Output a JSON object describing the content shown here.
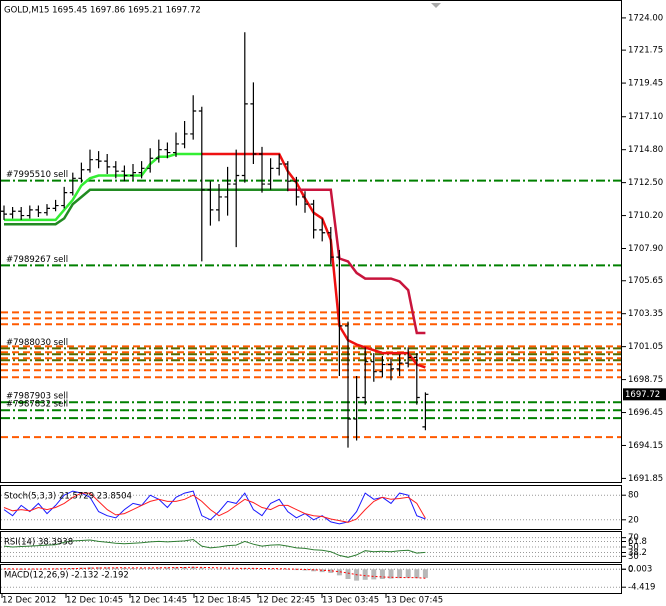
{
  "chart_data": [
    {
      "type": "ohlc",
      "title": "GOLD,M15  1695.45 1697.86 1695.21 1697.72",
      "bar_color": "#000000",
      "ohlc": [
        [
          1710.5,
          1710.9,
          1709.9,
          1710.3
        ],
        [
          1710.3,
          1710.8,
          1710.0,
          1710.5
        ],
        [
          1710.5,
          1710.8,
          1709.9,
          1710.2
        ],
        [
          1710.2,
          1710.9,
          1710.0,
          1710.6
        ],
        [
          1710.6,
          1710.9,
          1710.1,
          1710.4
        ],
        [
          1710.4,
          1711.0,
          1710.2,
          1710.7
        ],
        [
          1710.7,
          1711.3,
          1710.5,
          1710.9
        ],
        [
          1710.9,
          1712.2,
          1710.7,
          1711.8
        ],
        [
          1711.8,
          1713.2,
          1711.6,
          1712.8
        ],
        [
          1712.8,
          1713.9,
          1712.5,
          1713.4
        ],
        [
          1713.4,
          1714.8,
          1713.2,
          1714.1
        ],
        [
          1714.1,
          1714.7,
          1713.5,
          1714.0
        ],
        [
          1714.0,
          1714.5,
          1713.1,
          1713.6
        ],
        [
          1713.6,
          1714.0,
          1712.8,
          1713.3
        ],
        [
          1713.3,
          1713.7,
          1712.6,
          1713.0
        ],
        [
          1713.0,
          1713.8,
          1712.7,
          1713.2
        ],
        [
          1713.2,
          1714.0,
          1712.8,
          1713.5
        ],
        [
          1713.5,
          1714.9,
          1713.2,
          1714.2
        ],
        [
          1714.2,
          1715.5,
          1713.9,
          1714.8
        ],
        [
          1714.8,
          1715.3,
          1714.2,
          1714.6
        ],
        [
          1714.6,
          1716.0,
          1714.3,
          1715.2
        ],
        [
          1715.2,
          1716.8,
          1714.9,
          1715.9
        ],
        [
          1715.9,
          1718.6,
          1715.5,
          1717.5
        ],
        [
          1717.5,
          1717.8,
          1707.0,
          1712.0
        ],
        [
          1712.0,
          1712.6,
          1709.5,
          1710.6
        ],
        [
          1710.6,
          1712.4,
          1709.8,
          1711.5
        ],
        [
          1711.5,
          1713.6,
          1710.2,
          1712.4
        ],
        [
          1712.4,
          1714.8,
          1708.0,
          1713.0
        ],
        [
          1713.0,
          1723.0,
          1712.5,
          1718.0
        ],
        [
          1718.0,
          1719.5,
          1713.8,
          1714.5
        ],
        [
          1714.5,
          1715.0,
          1711.8,
          1712.4
        ],
        [
          1712.4,
          1714.2,
          1712.0,
          1713.5
        ],
        [
          1713.5,
          1714.5,
          1713.0,
          1713.8
        ],
        [
          1713.8,
          1714.0,
          1711.9,
          1712.6
        ],
        [
          1712.6,
          1712.9,
          1710.9,
          1711.5
        ],
        [
          1711.5,
          1711.9,
          1710.4,
          1711.0
        ],
        [
          1711.0,
          1711.3,
          1708.6,
          1709.2
        ],
        [
          1709.2,
          1710.0,
          1708.4,
          1709.0
        ],
        [
          1709.0,
          1709.4,
          1706.8,
          1707.3
        ],
        [
          1707.3,
          1707.8,
          1699.0,
          1702.5
        ],
        [
          1702.5,
          1702.8,
          1694.0,
          1696.0
        ],
        [
          1696.0,
          1699.0,
          1694.5,
          1697.5
        ],
        [
          1697.5,
          1701.0,
          1697.0,
          1700.0
        ],
        [
          1700.0,
          1700.6,
          1698.6,
          1699.3
        ],
        [
          1699.3,
          1700.4,
          1698.9,
          1699.8
        ],
        [
          1699.8,
          1700.2,
          1698.7,
          1699.5
        ],
        [
          1699.5,
          1700.5,
          1699.0,
          1699.9
        ],
        [
          1699.9,
          1701.0,
          1699.6,
          1700.3
        ],
        [
          1700.3,
          1700.6,
          1697.0,
          1697.5
        ],
        [
          1695.45,
          1697.86,
          1695.21,
          1697.72
        ]
      ],
      "series": [
        {
          "color": "#33ee33",
          "values": [
            1709.9,
            1709.9,
            1709.9,
            1709.9,
            1709.9,
            1709.9,
            1709.9,
            1710.6,
            1711.3,
            1712.3,
            1712.8,
            1713.0,
            1713.0,
            1713.0,
            1713.0,
            1713.0,
            1713.0,
            1713.8,
            1714.3,
            1714.3,
            1714.5,
            1714.5,
            1714.5,
            1714.5,
            null,
            null,
            null,
            null,
            null,
            null,
            null,
            null,
            null,
            null,
            null,
            null,
            null,
            null,
            null,
            null,
            null,
            null,
            null,
            null,
            null,
            null,
            null,
            null,
            null,
            null
          ]
        },
        {
          "color": "#ee1111",
          "values": [
            null,
            null,
            null,
            null,
            null,
            null,
            null,
            null,
            null,
            null,
            null,
            null,
            null,
            null,
            null,
            null,
            null,
            null,
            null,
            null,
            null,
            null,
            null,
            1714.5,
            1714.5,
            1714.5,
            1714.5,
            1714.5,
            1714.5,
            1714.5,
            1714.5,
            1714.5,
            1714.5,
            1713.3,
            1712.5,
            1711.4,
            1710.4,
            1710.0,
            1708.5,
            1702.5,
            1701.5,
            1701.2,
            1701.0,
            1700.8,
            1700.6,
            1700.6,
            1700.6,
            1700.6,
            1699.8,
            1699.6
          ]
        },
        {
          "color": "#228b22",
          "values": [
            1709.6,
            1709.6,
            1709.6,
            1709.6,
            1709.6,
            1709.6,
            1709.6,
            1710.0,
            1711.0,
            1711.5,
            1712.0,
            1712.0,
            1712.0,
            1712.0,
            1712.0,
            1712.0,
            1712.0,
            1712.0,
            1712.0,
            1712.0,
            1712.0,
            1712.0,
            1712.0,
            1712.0,
            1712.0,
            1712.0,
            1712.0,
            1712.0,
            1712.0,
            1712.0,
            1712.0,
            1712.0,
            1712.0,
            1712.0,
            null,
            null,
            null,
            null,
            null,
            null,
            null,
            null,
            null,
            null,
            null,
            null,
            null,
            null,
            null,
            null
          ]
        },
        {
          "color": "#c8143c",
          "values": [
            null,
            null,
            null,
            null,
            null,
            null,
            null,
            null,
            null,
            null,
            null,
            null,
            null,
            null,
            null,
            null,
            null,
            null,
            null,
            null,
            null,
            null,
            null,
            null,
            null,
            null,
            null,
            null,
            null,
            null,
            null,
            null,
            null,
            1712.0,
            1712.0,
            1712.0,
            1712.0,
            1712.0,
            1712.0,
            1707.2,
            1707.0,
            1706.2,
            1705.8,
            1705.8,
            1705.8,
            1705.8,
            1705.6,
            1705.0,
            1702.0,
            1702.0
          ]
        }
      ],
      "levels": [
        {
          "value": 1703.44,
          "color": "#ff5a00",
          "style": "dash"
        },
        {
          "value": 1703.02,
          "color": "#ff5a00",
          "style": "dash"
        },
        {
          "value": 1702.61,
          "color": "#ff5a00",
          "style": "dash"
        },
        {
          "value": 1701.07,
          "color": "#ff5a00",
          "style": "dash"
        },
        {
          "value": 1700.66,
          "color": "#ff5a00",
          "style": "dash"
        },
        {
          "value": 1700.24,
          "color": "#ff5a00",
          "style": "dash"
        },
        {
          "value": 1699.82,
          "color": "#ff5a00",
          "style": "dash"
        },
        {
          "value": 1699.4,
          "color": "#ff5a00",
          "style": "dash"
        },
        {
          "value": 1698.91,
          "color": "#ff5a00",
          "style": "dash"
        },
        {
          "value": 1700.52,
          "color": "#556b00",
          "style": "dashdot"
        },
        {
          "value": 1700.1,
          "color": "#556b00",
          "style": "dashdot"
        },
        {
          "value": 1696.06,
          "color": "#008000",
          "style": "dashdot"
        },
        {
          "value": 1694.73,
          "color": "#ff5a00",
          "style": "dash"
        }
      ],
      "orders": [
        {
          "label": "#7995510 sell",
          "value": 1712.64,
          "color": "#008000"
        },
        {
          "label": "#7989267 sell",
          "value": 1706.72,
          "color": "#008000"
        },
        {
          "label": "#7988030 sell",
          "value": 1700.93,
          "color": "#556b00"
        },
        {
          "label": "#7987903 sell",
          "value": 1697.17,
          "color": "#008000"
        },
        {
          "label": "#7987832 sell",
          "value": 1696.61,
          "color": "#008000"
        }
      ],
      "current_price": 1697.72,
      "ylim": [
        1691.6,
        1725.18
      ],
      "yticks": [
        {
          "value": 1724,
          "label": "1724.00"
        },
        1721.75,
        1719.45,
        {
          "value": 1717.1,
          "label": "1717.10"
        },
        {
          "value": 1714.8,
          "label": "1714.80"
        },
        {
          "value": 1712.5,
          "label": "1712.50"
        },
        {
          "value": 1710.2,
          "label": "1710.20"
        },
        {
          "value": 1707.9,
          "label": "1707.90"
        },
        1705.65,
        1703.35,
        1701.05,
        1698.75,
        1696.45,
        1694.15,
        1691.85
      ],
      "x_labels": [
        "12 Dec 2012",
        "12 Dec 10:45",
        "12 Dec 14:45",
        "12 Dec 18:45",
        "12 Dec 22:45",
        "13 Dec 03:45",
        "13 Dec 07:45"
      ]
    },
    {
      "type": "line",
      "title": "Stoch(5,3,3) 21.5729 23.8504",
      "ylim": [
        0,
        100
      ],
      "yticks": [
        20,
        80
      ],
      "series": [
        {
          "color": "#1a1aff",
          "values": [
            45,
            30,
            55,
            40,
            60,
            35,
            55,
            80,
            90,
            85,
            75,
            40,
            30,
            25,
            45,
            60,
            55,
            80,
            70,
            50,
            75,
            85,
            90,
            30,
            20,
            40,
            65,
            60,
            85,
            45,
            30,
            60,
            70,
            40,
            25,
            35,
            20,
            30,
            15,
            10,
            15,
            40,
            85,
            70,
            75,
            60,
            85,
            80,
            30,
            22
          ]
        },
        {
          "color": "#ff2020",
          "values": [
            50,
            42,
            45,
            42,
            50,
            45,
            50,
            60,
            75,
            85,
            85,
            65,
            45,
            32,
            35,
            45,
            55,
            65,
            70,
            65,
            65,
            70,
            80,
            65,
            45,
            30,
            40,
            55,
            70,
            62,
            50,
            45,
            55,
            55,
            45,
            35,
            30,
            28,
            22,
            18,
            14,
            22,
            45,
            65,
            75,
            70,
            72,
            75,
            60,
            24
          ]
        }
      ]
    },
    {
      "type": "line",
      "title": "RSI(14) 38.3938",
      "ylim": [
        20,
        80
      ],
      "yticks": [
        70,
        61.8,
        50,
        38.2,
        30
      ],
      "series": [
        {
          "color": "#2e7d32",
          "values": [
            52,
            50,
            51,
            52,
            53,
            54,
            55,
            60,
            63,
            64,
            65,
            62,
            60,
            58,
            57,
            58,
            59,
            61,
            62,
            61,
            62,
            63,
            66,
            52,
            48,
            50,
            53,
            54,
            62,
            56,
            52,
            54,
            55,
            52,
            48,
            47,
            44,
            43,
            40,
            32,
            28,
            33,
            42,
            40,
            41,
            40,
            42,
            43,
            37,
            38.4
          ]
        }
      ]
    },
    {
      "type": "macd",
      "title": "MACD(12,26,9) -2.132 -2.192",
      "ylim": [
        -5.6,
        0.8
      ],
      "yticks": [
        0.003,
        0,
        -4.419
      ],
      "series": [
        {
          "color": "#b8b8b8",
          "style": "histogram",
          "values": [
            0.1,
            0.05,
            0.0,
            0.05,
            0.1,
            0.1,
            0.15,
            0.2,
            0.3,
            0.4,
            0.5,
            0.5,
            0.45,
            0.4,
            0.35,
            0.3,
            0.3,
            0.35,
            0.4,
            0.45,
            0.5,
            0.55,
            0.6,
            0.4,
            0.2,
            0.1,
            0.05,
            0.05,
            0.2,
            0.2,
            0.1,
            0.05,
            0.0,
            -0.1,
            -0.2,
            -0.3,
            -0.5,
            -0.7,
            -0.9,
            -1.5,
            -2.4,
            -2.8,
            -2.6,
            -2.5,
            -2.4,
            -2.3,
            -2.2,
            -2.1,
            -2.2,
            -2.132
          ]
        },
        {
          "color": "#ff0000",
          "style": "dotted",
          "values": [
            0.1,
            0.09,
            0.07,
            0.07,
            0.07,
            0.08,
            0.09,
            0.11,
            0.15,
            0.2,
            0.26,
            0.31,
            0.34,
            0.35,
            0.35,
            0.34,
            0.33,
            0.33,
            0.35,
            0.37,
            0.4,
            0.43,
            0.47,
            0.45,
            0.4,
            0.34,
            0.28,
            0.23,
            0.22,
            0.22,
            0.19,
            0.16,
            0.13,
            0.08,
            0.02,
            -0.05,
            -0.14,
            -0.25,
            -0.38,
            -0.6,
            -0.96,
            -1.33,
            -1.58,
            -1.77,
            -1.9,
            -1.98,
            -2.03,
            -2.05,
            -2.08,
            -2.192
          ]
        }
      ]
    }
  ]
}
